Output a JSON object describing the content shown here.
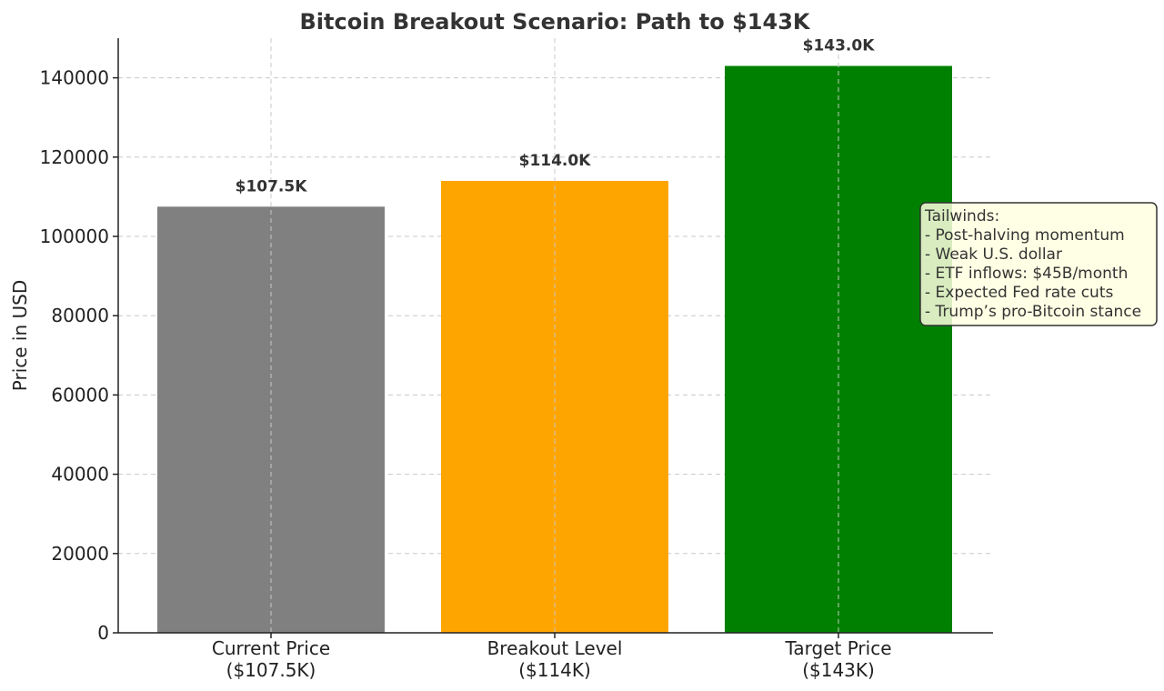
{
  "chart_data": {
    "type": "bar",
    "title": "Bitcoin Breakout Scenario: Path to $143K",
    "xlabel": "",
    "ylabel": "Price in USD",
    "ylim": [
      0,
      150000
    ],
    "yticks": [
      0,
      20000,
      40000,
      60000,
      80000,
      100000,
      120000,
      140000
    ],
    "grid": true,
    "categories": [
      [
        "Current Price",
        "($107.5K)"
      ],
      [
        "Breakout Level",
        "($114K)"
      ],
      [
        "Target Price",
        "($143K)"
      ]
    ],
    "values": [
      107500,
      114000,
      143000
    ],
    "data_labels": [
      "$107.5K",
      "$114.0K",
      "$143.0K"
    ],
    "colors": [
      "#808080",
      "#ffa500",
      "#008000"
    ],
    "annotation": {
      "lines": [
        "Tailwinds:",
        "- Post-halving momentum",
        "- Weak U.S. dollar",
        "- ETF inflows: $45B/month",
        "- Expected Fed rate cuts",
        "- Trump’s pro-Bitcoin stance"
      ],
      "background": "#ffffe0",
      "border": "#333333"
    }
  }
}
